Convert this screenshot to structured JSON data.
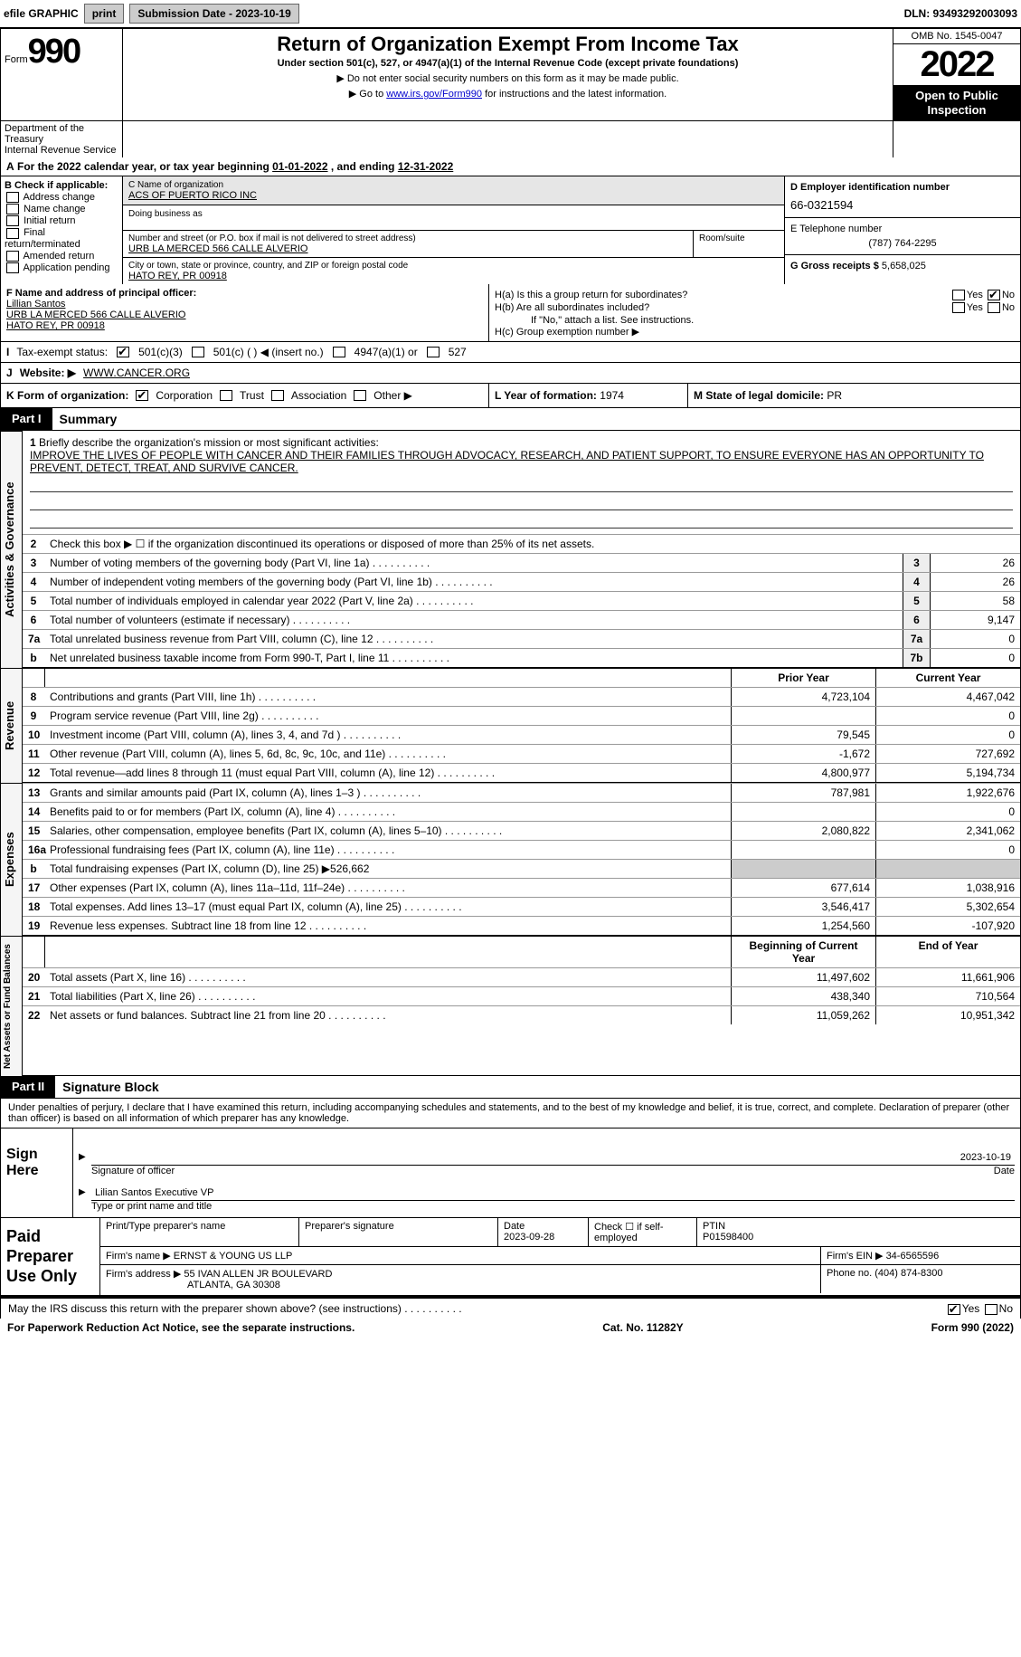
{
  "topbar": {
    "efile_label": "efile GRAPHIC",
    "print_btn": "print",
    "submission_label": "Submission Date - 2023-10-19",
    "dln_label": "DLN: 93493292003093"
  },
  "header": {
    "form_word": "Form",
    "form_number": "990",
    "title": "Return of Organization Exempt From Income Tax",
    "subtitle": "Under section 501(c), 527, or 4947(a)(1) of the Internal Revenue Code (except private foundations)",
    "note1": "▶ Do not enter social security numbers on this form as it may be made public.",
    "note2_pre": "▶ Go to ",
    "note2_link": "www.irs.gov/Form990",
    "note2_post": " for instructions and the latest information.",
    "omb": "OMB No. 1545-0047",
    "year": "2022",
    "inspection": "Open to Public Inspection",
    "dept": "Department of the Treasury",
    "irs": "Internal Revenue Service"
  },
  "lineA": {
    "label_a": "A",
    "text1": " For the 2022 calendar year, or tax year beginning ",
    "begin": "01-01-2022",
    "text2": " , and ending ",
    "end": "12-31-2022"
  },
  "boxB": {
    "label": "B Check if applicable:",
    "opts": [
      "Address change",
      "Name change",
      "Initial return",
      "Final return/terminated",
      "Amended return",
      "Application pending"
    ]
  },
  "boxC": {
    "name_label": "C Name of organization",
    "name": "ACS OF PUERTO RICO INC",
    "dba_label": "Doing business as",
    "dba": "",
    "street_label": "Number and street (or P.O. box if mail is not delivered to street address)",
    "street": "URB LA MERCED 566 CALLE ALVERIO",
    "room_label": "Room/suite",
    "room": "",
    "city_label": "City or town, state or province, country, and ZIP or foreign postal code",
    "city": "HATO REY, PR  00918"
  },
  "boxD": {
    "ein_label": "D Employer identification number",
    "ein": "66-0321594",
    "tel_label": "E Telephone number",
    "tel": "(787) 764-2295",
    "gross_label": "G Gross receipts $",
    "gross": "5,658,025"
  },
  "boxF": {
    "label": "F Name and address of principal officer:",
    "name": "Lillian Santos",
    "addr1": "URB LA MERCED 566 CALLE ALVERIO",
    "addr2": "HATO REY, PR  00918"
  },
  "boxH": {
    "ha": "H(a)  Is this a group return for subordinates?",
    "hb": "H(b)  Are all subordinates included?",
    "hb_note": "If \"No,\" attach a list. See instructions.",
    "hc": "H(c)  Group exemption number ▶",
    "yes": "Yes",
    "no": "No"
  },
  "taxExempt": {
    "label_i": "I",
    "label": "Tax-exempt status:",
    "opt1": "501(c)(3)",
    "opt2": "501(c) (   ) ◀ (insert no.)",
    "opt3": "4947(a)(1) or",
    "opt4": "527"
  },
  "website": {
    "label_j": "J",
    "label": "Website: ▶",
    "value": "WWW.CANCER.ORG"
  },
  "klm": {
    "k_label": "K Form of organization:",
    "k_opts": [
      "Corporation",
      "Trust",
      "Association",
      "Other ▶"
    ],
    "l_label": "L Year of formation:",
    "l_val": "1974",
    "m_label": "M State of legal domicile:",
    "m_val": "PR"
  },
  "partI": {
    "tab": "Part I",
    "title": "Summary"
  },
  "section_labels": {
    "act": "Activities & Governance",
    "rev": "Revenue",
    "exp": "Expenses",
    "net": "Net Assets or Fund Balances"
  },
  "mission": {
    "n": "1",
    "label": "Briefly describe the organization's mission or most significant activities:",
    "text": "IMPROVE THE LIVES OF PEOPLE WITH CANCER AND THEIR FAMILIES THROUGH ADVOCACY, RESEARCH, AND PATIENT SUPPORT, TO ENSURE EVERYONE HAS AN OPPORTUNITY TO PREVENT, DETECT, TREAT, AND SURVIVE CANCER."
  },
  "line2": {
    "n": "2",
    "text": "Check this box ▶ ☐ if the organization discontinued its operations or disposed of more than 25% of its net assets."
  },
  "gov_lines": [
    {
      "n": "3",
      "text": "Number of voting members of the governing body (Part VI, line 1a)",
      "box": "3",
      "val": "26"
    },
    {
      "n": "4",
      "text": "Number of independent voting members of the governing body (Part VI, line 1b)",
      "box": "4",
      "val": "26"
    },
    {
      "n": "5",
      "text": "Total number of individuals employed in calendar year 2022 (Part V, line 2a)",
      "box": "5",
      "val": "58"
    },
    {
      "n": "6",
      "text": "Total number of volunteers (estimate if necessary)",
      "box": "6",
      "val": "9,147"
    },
    {
      "n": "7a",
      "text": "Total unrelated business revenue from Part VIII, column (C), line 12",
      "box": "7a",
      "val": "0"
    },
    {
      "n": "b",
      "text": "Net unrelated business taxable income from Form 990-T, Part I, line 11",
      "box": "7b",
      "val": "0"
    }
  ],
  "rev_hdr": {
    "py": "Prior Year",
    "cy": "Current Year"
  },
  "rev_lines": [
    {
      "n": "8",
      "text": "Contributions and grants (Part VIII, line 1h)",
      "py": "4,723,104",
      "cy": "4,467,042"
    },
    {
      "n": "9",
      "text": "Program service revenue (Part VIII, line 2g)",
      "py": "",
      "cy": "0"
    },
    {
      "n": "10",
      "text": "Investment income (Part VIII, column (A), lines 3, 4, and 7d )",
      "py": "79,545",
      "cy": "0"
    },
    {
      "n": "11",
      "text": "Other revenue (Part VIII, column (A), lines 5, 6d, 8c, 9c, 10c, and 11e)",
      "py": "-1,672",
      "cy": "727,692"
    },
    {
      "n": "12",
      "text": "Total revenue—add lines 8 through 11 (must equal Part VIII, column (A), line 12)",
      "py": "4,800,977",
      "cy": "5,194,734"
    }
  ],
  "exp_lines": [
    {
      "n": "13",
      "text": "Grants and similar amounts paid (Part IX, column (A), lines 1–3 )",
      "py": "787,981",
      "cy": "1,922,676"
    },
    {
      "n": "14",
      "text": "Benefits paid to or for members (Part IX, column (A), line 4)",
      "py": "",
      "cy": "0"
    },
    {
      "n": "15",
      "text": "Salaries, other compensation, employee benefits (Part IX, column (A), lines 5–10)",
      "py": "2,080,822",
      "cy": "2,341,062"
    },
    {
      "n": "16a",
      "text": "Professional fundraising fees (Part IX, column (A), line 11e)",
      "py": "",
      "cy": "0"
    },
    {
      "n": "b",
      "text": "Total fundraising expenses (Part IX, column (D), line 25) ▶526,662",
      "py": "",
      "cy": "",
      "shade": true
    },
    {
      "n": "17",
      "text": "Other expenses (Part IX, column (A), lines 11a–11d, 11f–24e)",
      "py": "677,614",
      "cy": "1,038,916"
    },
    {
      "n": "18",
      "text": "Total expenses. Add lines 13–17 (must equal Part IX, column (A), line 25)",
      "py": "3,546,417",
      "cy": "5,302,654"
    },
    {
      "n": "19",
      "text": "Revenue less expenses. Subtract line 18 from line 12",
      "py": "1,254,560",
      "cy": "-107,920"
    }
  ],
  "net_hdr": {
    "py": "Beginning of Current Year",
    "cy": "End of Year"
  },
  "net_lines": [
    {
      "n": "20",
      "text": "Total assets (Part X, line 16)",
      "py": "11,497,602",
      "cy": "11,661,906"
    },
    {
      "n": "21",
      "text": "Total liabilities (Part X, line 26)",
      "py": "438,340",
      "cy": "710,564"
    },
    {
      "n": "22",
      "text": "Net assets or fund balances. Subtract line 21 from line 20",
      "py": "11,059,262",
      "cy": "10,951,342"
    }
  ],
  "partII": {
    "tab": "Part II",
    "title": "Signature Block"
  },
  "sig_decl": "Under penalties of perjury, I declare that I have examined this return, including accompanying schedules and statements, and to the best of my knowledge and belief, it is true, correct, and complete. Declaration of preparer (other than officer) is based on all information of which preparer has any knowledge.",
  "sign": {
    "label": "Sign Here",
    "sig_officer": "Signature of officer",
    "sig_date": "2023-10-19",
    "name": "Lilian Santos  Executive VP",
    "name_label": "Type or print name and title",
    "date_label": "Date"
  },
  "paid": {
    "label": "Paid Preparer Use Only",
    "col_print": "Print/Type preparer's name",
    "col_sig": "Preparer's signature",
    "col_date": "Date",
    "date_val": "2023-09-28",
    "col_check": "Check ☐ if self-employed",
    "col_ptin": "PTIN",
    "ptin_val": "P01598400",
    "firm_name_label": "Firm's name    ▶",
    "firm_name": "ERNST & YOUNG US LLP",
    "firm_ein_label": "Firm's EIN ▶",
    "firm_ein": "34-6565596",
    "firm_addr_label": "Firm's address ▶",
    "firm_addr1": "55 IVAN ALLEN JR BOULEVARD",
    "firm_addr2": "ATLANTA, GA  30308",
    "phone_label": "Phone no.",
    "phone": "(404) 874-8300"
  },
  "discuss": {
    "text": "May the IRS discuss this return with the preparer shown above? (see instructions)",
    "yes": "Yes",
    "no": "No"
  },
  "footer": {
    "left": "For Paperwork Reduction Act Notice, see the separate instructions.",
    "mid": "Cat. No. 11282Y",
    "right": "Form 990 (2022)"
  }
}
